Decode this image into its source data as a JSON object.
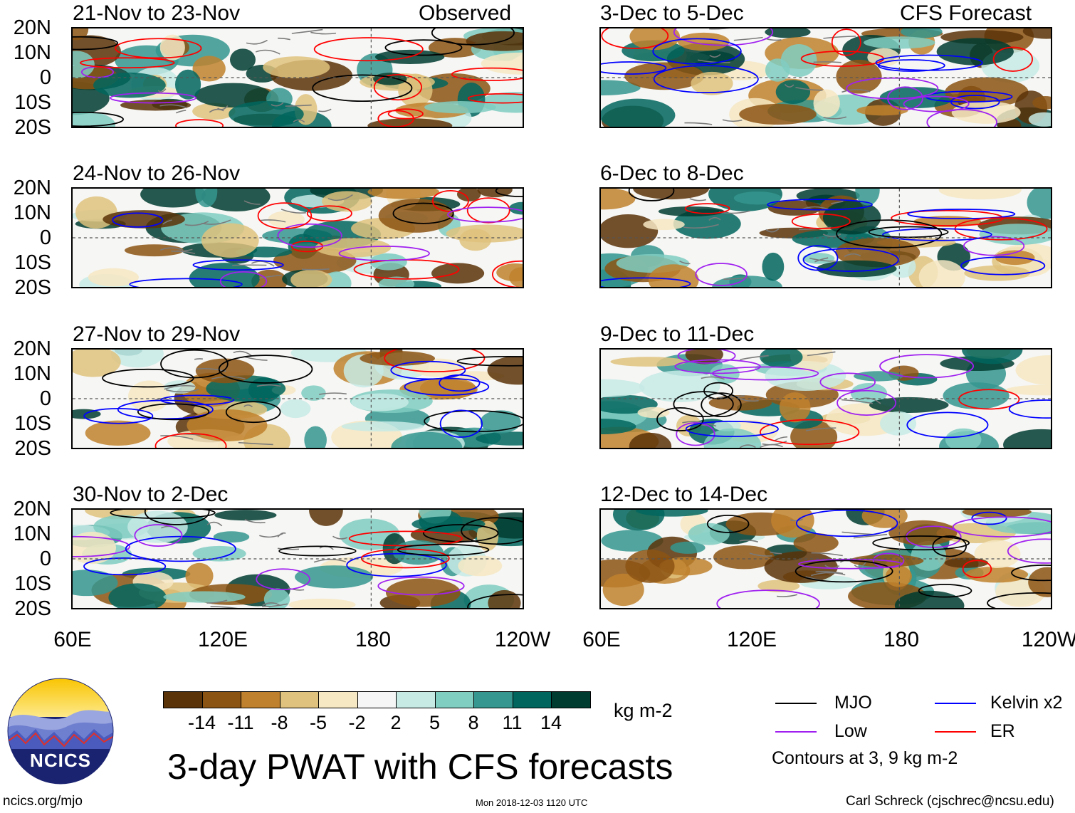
{
  "headers": {
    "left": "Observed",
    "right": "CFS Forecast"
  },
  "panels": {
    "observed": [
      "21-Nov to 23-Nov",
      "24-Nov to 26-Nov",
      "27-Nov to 29-Nov",
      "30-Nov to 2-Dec"
    ],
    "forecast": [
      "3-Dec to 5-Dec",
      "6-Dec to 8-Dec",
      "9-Dec to 11-Dec",
      "12-Dec to 14-Dec"
    ]
  },
  "lat_labels": [
    "20N",
    "10N",
    "0",
    "10S",
    "20S"
  ],
  "lon_labels_left": [
    "60E",
    "120E",
    "180",
    "120W"
  ],
  "lon_labels_right": [
    "60E",
    "120E",
    "180",
    "120W"
  ],
  "colorbar": {
    "colors": [
      "#5a3308",
      "#8c5413",
      "#bf812d",
      "#dfc27d",
      "#f6e8c3",
      "#f5f5f5",
      "#c7eae5",
      "#80cdc1",
      "#35978f",
      "#01665e",
      "#003c30"
    ],
    "ticks": [
      "-14",
      "-11",
      "-8",
      "-5",
      "-2",
      "2",
      "5",
      "8",
      "11",
      "14"
    ],
    "unit": "kg m-2"
  },
  "legend": {
    "items": [
      {
        "label": "MJO",
        "color": "#000000"
      },
      {
        "label": "Kelvin x2",
        "color": "#0000ff"
      },
      {
        "label": "Low",
        "color": "#a020f0"
      },
      {
        "label": "ER",
        "color": "#ff0000"
      }
    ],
    "contours_note": "Contours at 3, 9 kg m-2"
  },
  "title": "3-day PWAT with CFS forecasts",
  "logo_text": "NCICS",
  "footer": {
    "url": "ncics.org/mjo",
    "timestamp": "Mon 2018-12-03 1120 UTC",
    "author": "Carl Schreck (cjschrec@ncsu.edu)"
  }
}
